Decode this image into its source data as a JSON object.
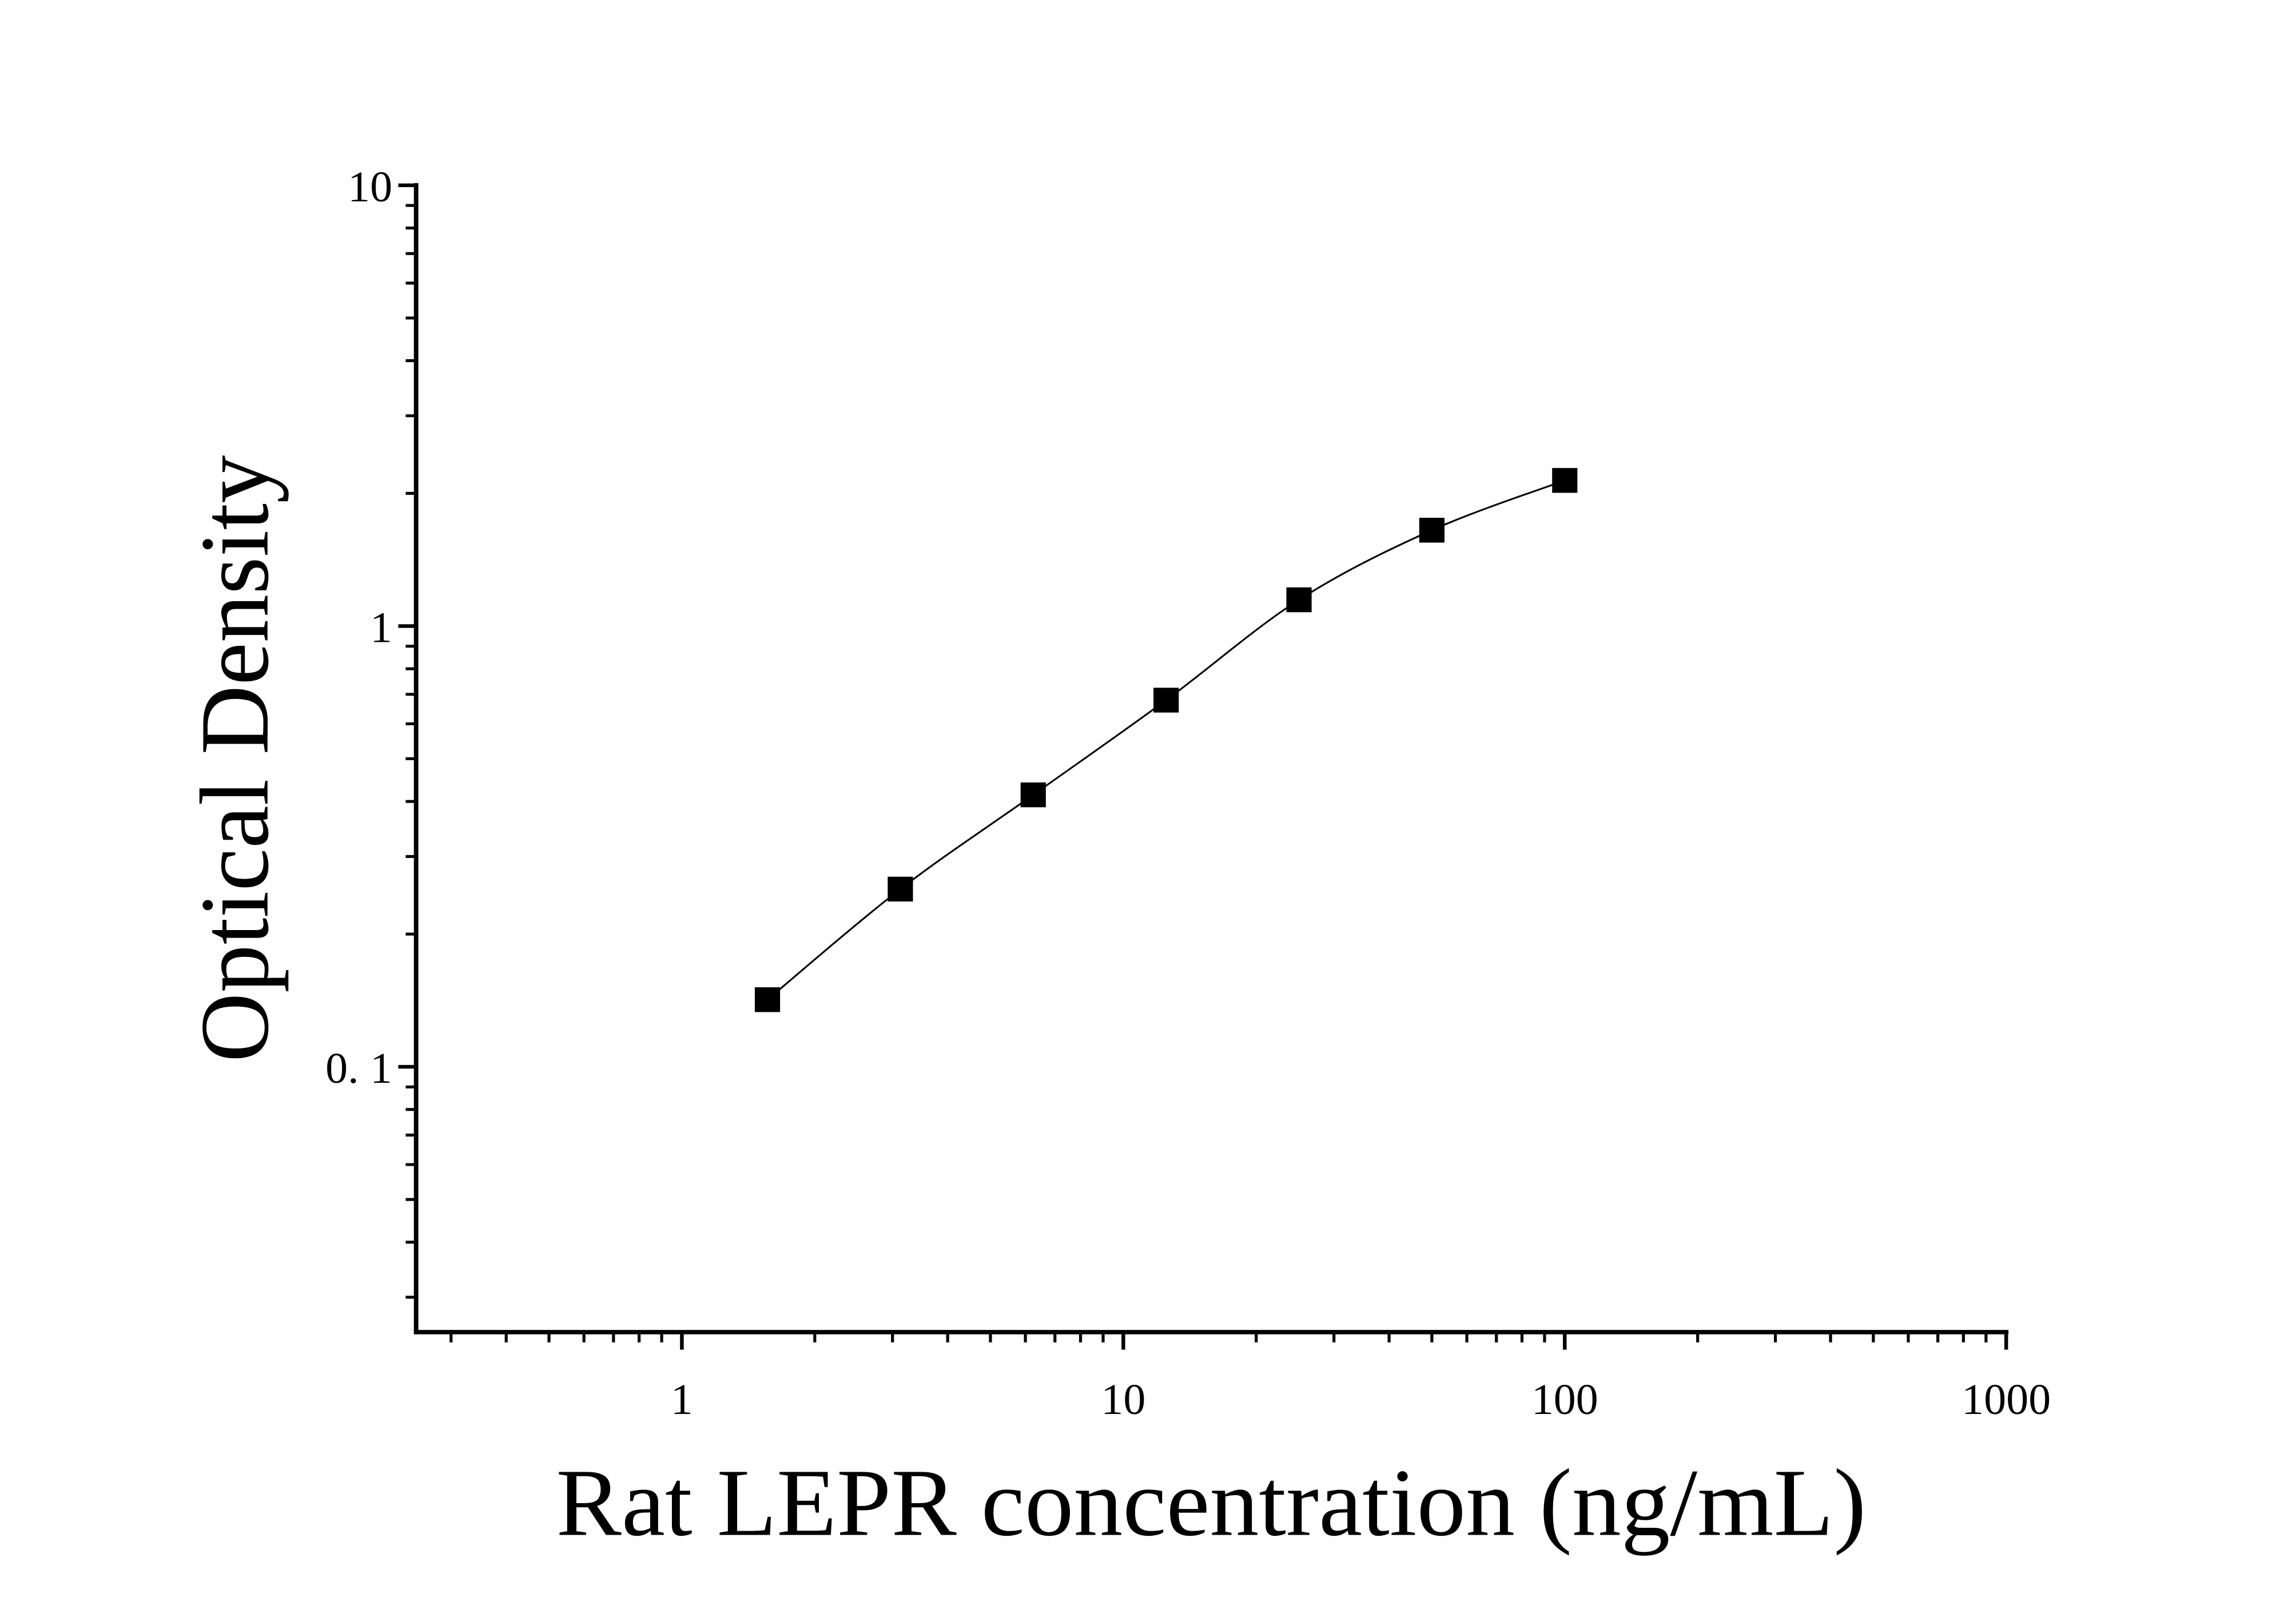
{
  "chart_data": {
    "type": "scatter-curve",
    "xlabel": "Rat LEPR concentration (ng/mL)",
    "ylabel": "Optical Density",
    "x": [
      1.5625,
      3.125,
      6.25,
      12.5,
      25,
      50,
      100
    ],
    "values": [
      0.142,
      0.253,
      0.414,
      0.679,
      1.147,
      1.65,
      2.14
    ],
    "color": "#000000",
    "xscale": "log",
    "yscale": "log",
    "xlim": [
      0.25,
      1000
    ],
    "ylim": [
      0.025,
      10
    ],
    "xticks": [
      1,
      10,
      100,
      1000
    ],
    "yticks": [
      {
        "value": 0.1,
        "label": "0. 1"
      },
      1,
      10
    ]
  }
}
